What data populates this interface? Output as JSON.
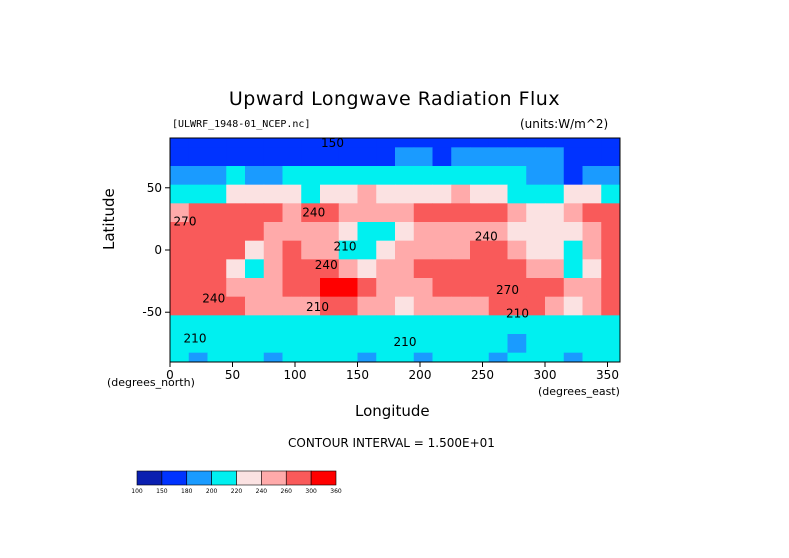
{
  "chart_data": {
    "type": "heatmap",
    "title": "Upward Longwave Radiation Flux",
    "source_label": "[ULWRF_1948-01_NCEP.nc]",
    "units_label": "(units:W/m^2)",
    "xlabel": "Longitude",
    "ylabel": "Latitude",
    "x_unit_label": "(degrees_east)",
    "y_unit_label": "(degrees_north)",
    "x_ticks": [
      0,
      50,
      100,
      150,
      200,
      250,
      300,
      350
    ],
    "y_ticks": [
      50,
      0,
      -50
    ],
    "xlim": [
      0,
      360
    ],
    "ylim": [
      -90,
      90
    ],
    "contour_interval_text": "CONTOUR INTERVAL = 1.500E+01",
    "contour_labels": [
      {
        "text": "150",
        "lon": 130,
        "lat": 86
      },
      {
        "text": "240",
        "lon": 115,
        "lat": 30
      },
      {
        "text": "270",
        "lon": 12,
        "lat": 23
      },
      {
        "text": "210",
        "lon": 140,
        "lat": 3
      },
      {
        "text": "240",
        "lon": 125,
        "lat": -12
      },
      {
        "text": "240",
        "lon": 253,
        "lat": 11
      },
      {
        "text": "270",
        "lon": 270,
        "lat": -32
      },
      {
        "text": "240",
        "lon": 35,
        "lat": -39
      },
      {
        "text": "210",
        "lon": 118,
        "lat": -46
      },
      {
        "text": "210",
        "lon": 278,
        "lat": -51
      },
      {
        "text": "210",
        "lon": 20,
        "lat": -71
      },
      {
        "text": "210",
        "lon": 188,
        "lat": -74
      }
    ],
    "colorbar": {
      "ticks": [
        "100",
        "150",
        "180",
        "200",
        "220",
        "240",
        "260",
        "300",
        "360"
      ],
      "colors": [
        "#0a1fb0",
        "#0033ff",
        "#1a9bff",
        "#00f0f0",
        "#fbe2e2",
        "#ffaaaa",
        "#f95a5a",
        "#ff0000"
      ]
    },
    "grid": [
      [
        150,
        150,
        150,
        150,
        150,
        150,
        150,
        150,
        150,
        150,
        150,
        150,
        150,
        150,
        150,
        150,
        150,
        150,
        150,
        150,
        150,
        150,
        150,
        150
      ],
      [
        170,
        175,
        165,
        170,
        160,
        160,
        165,
        165,
        160,
        170,
        175,
        175,
        180,
        180,
        175,
        180,
        185,
        180,
        185,
        185,
        180,
        175,
        170,
        170
      ],
      [
        180,
        190,
        195,
        200,
        195,
        190,
        200,
        205,
        210,
        210,
        205,
        210,
        215,
        210,
        210,
        205,
        205,
        200,
        200,
        195,
        180,
        175,
        185,
        185
      ],
      [
        200,
        210,
        215,
        220,
        230,
        235,
        225,
        215,
        220,
        230,
        240,
        235,
        230,
        225,
        230,
        240,
        230,
        220,
        210,
        205,
        210,
        225,
        230,
        210
      ],
      [
        250,
        260,
        270,
        275,
        270,
        260,
        255,
        265,
        265,
        255,
        250,
        255,
        250,
        260,
        265,
        270,
        265,
        260,
        250,
        220,
        230,
        255,
        270,
        260
      ],
      [
        265,
        275,
        280,
        275,
        265,
        250,
        245,
        250,
        245,
        225,
        215,
        215,
        235,
        245,
        250,
        255,
        250,
        245,
        235,
        220,
        225,
        235,
        255,
        265
      ],
      [
        280,
        285,
        285,
        260,
        220,
        240,
        260,
        255,
        245,
        210,
        205,
        230,
        240,
        240,
        240,
        255,
        270,
        265,
        255,
        235,
        230,
        215,
        240,
        275
      ],
      [
        285,
        290,
        270,
        225,
        215,
        250,
        265,
        270,
        275,
        245,
        230,
        240,
        255,
        260,
        265,
        280,
        285,
        285,
        280,
        250,
        255,
        215,
        230,
        285
      ],
      [
        285,
        290,
        285,
        250,
        245,
        240,
        260,
        285,
        300,
        315,
        265,
        245,
        245,
        255,
        260,
        275,
        285,
        290,
        295,
        270,
        280,
        245,
        250,
        285
      ],
      [
        270,
        260,
        265,
        270,
        255,
        250,
        245,
        250,
        260,
        275,
        250,
        240,
        235,
        240,
        240,
        245,
        255,
        265,
        270,
        260,
        245,
        235,
        240,
        270
      ],
      [
        215,
        205,
        210,
        215,
        210,
        205,
        210,
        215,
        210,
        205,
        210,
        215,
        210,
        205,
        210,
        215,
        210,
        205,
        210,
        205,
        210,
        215,
        210,
        215
      ],
      [
        205,
        200,
        205,
        210,
        205,
        200,
        205,
        205,
        200,
        205,
        200,
        205,
        210,
        205,
        200,
        205,
        210,
        200,
        195,
        200,
        205,
        200,
        205,
        205
      ],
      [
        200,
        195,
        200,
        205,
        200,
        195,
        200,
        200,
        205,
        200,
        195,
        205,
        200,
        195,
        200,
        205,
        200,
        195,
        200,
        205,
        200,
        195,
        200,
        200
      ]
    ]
  }
}
